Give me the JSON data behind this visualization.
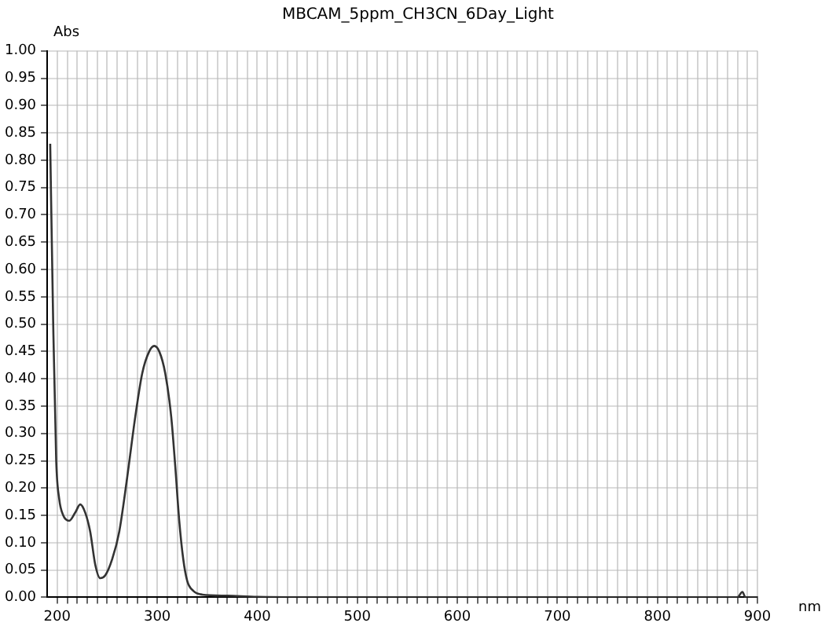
{
  "chart_data": {
    "type": "line",
    "title": "MBCAM_5ppm_CH3CN_6Day_Light",
    "xlabel": "nm",
    "ylabel": "Abs",
    "xlim": [
      190,
      900
    ],
    "ylim": [
      0,
      1
    ],
    "xticks": [
      200,
      {
        "value": 210,
        "label": null
      },
      {
        "value": 220,
        "label": null
      },
      {
        "value": 230,
        "label": null
      },
      {
        "value": 240,
        "label": null
      },
      {
        "value": 250,
        "label": null
      },
      {
        "value": 260,
        "label": null
      },
      {
        "value": 270,
        "label": null
      },
      {
        "value": 280,
        "label": null
      },
      {
        "value": 290,
        "label": null
      },
      300,
      {
        "value": 310,
        "label": null
      },
      {
        "value": 320,
        "label": null
      },
      {
        "value": 330,
        "label": null
      },
      {
        "value": 340,
        "label": null
      },
      {
        "value": 350,
        "label": null
      },
      {
        "value": 360,
        "label": null
      },
      {
        "value": 370,
        "label": null
      },
      {
        "value": 380,
        "label": null
      },
      {
        "value": 390,
        "label": null
      },
      400,
      {
        "value": 410,
        "label": null
      },
      {
        "value": 420,
        "label": null
      },
      {
        "value": 430,
        "label": null
      },
      {
        "value": 440,
        "label": null
      },
      {
        "value": 450,
        "label": null
      },
      {
        "value": 460,
        "label": null
      },
      {
        "value": 470,
        "label": null
      },
      {
        "value": 480,
        "label": null
      },
      {
        "value": 490,
        "label": null
      },
      500,
      {
        "value": 510,
        "label": null
      },
      {
        "value": 520,
        "label": null
      },
      {
        "value": 530,
        "label": null
      },
      {
        "value": 540,
        "label": null
      },
      {
        "value": 550,
        "label": null
      },
      {
        "value": 560,
        "label": null
      },
      {
        "value": 570,
        "label": null
      },
      {
        "value": 580,
        "label": null
      },
      {
        "value": 590,
        "label": null
      },
      600,
      {
        "value": 610,
        "label": null
      },
      {
        "value": 620,
        "label": null
      },
      {
        "value": 630,
        "label": null
      },
      {
        "value": 640,
        "label": null
      },
      {
        "value": 650,
        "label": null
      },
      {
        "value": 660,
        "label": null
      },
      {
        "value": 670,
        "label": null
      },
      {
        "value": 680,
        "label": null
      },
      {
        "value": 690,
        "label": null
      },
      700,
      {
        "value": 710,
        "label": null
      },
      {
        "value": 720,
        "label": null
      },
      {
        "value": 730,
        "label": null
      },
      {
        "value": 740,
        "label": null
      },
      {
        "value": 750,
        "label": null
      },
      {
        "value": 760,
        "label": null
      },
      {
        "value": 770,
        "label": null
      },
      {
        "value": 780,
        "label": null
      },
      {
        "value": 790,
        "label": null
      },
      800,
      {
        "value": 810,
        "label": null
      },
      {
        "value": 820,
        "label": null
      },
      {
        "value": 830,
        "label": null
      },
      {
        "value": 840,
        "label": null
      },
      {
        "value": 850,
        "label": null
      },
      {
        "value": 860,
        "label": null
      },
      {
        "value": 870,
        "label": null
      },
      {
        "value": 880,
        "label": null
      },
      {
        "value": 890,
        "label": null
      },
      900
    ],
    "yticks": [
      {
        "value": 0,
        "label": "0.00"
      },
      0.05,
      {
        "value": 0.1,
        "label": "0.10"
      },
      0.15,
      {
        "value": 0.2,
        "label": "0.20"
      },
      0.25,
      {
        "value": 0.3,
        "label": "0.30"
      },
      0.35,
      {
        "value": 0.4,
        "label": "0.40"
      },
      0.45,
      {
        "value": 0.5,
        "label": "0.50"
      },
      0.55,
      {
        "value": 0.6,
        "label": "0.60"
      },
      0.65,
      {
        "value": 0.7,
        "label": "0.70"
      },
      0.75,
      {
        "value": 0.8,
        "label": "0.80"
      },
      0.85,
      {
        "value": 0.9,
        "label": "0.90"
      },
      0.95,
      {
        "value": 1,
        "label": "1.00"
      }
    ],
    "grid": true,
    "marker": "none",
    "line_style": "solid",
    "series": [
      {
        "color": "#333333",
        "x": [
          193,
          196,
          199,
          202,
          206,
          212,
          218,
          223,
          228,
          233,
          238,
          243,
          248,
          255,
          262,
          270,
          278,
          285,
          292,
          297,
          302,
          308,
          314,
          318,
          322,
          326,
          330,
          336,
          345,
          370,
          400,
          500,
          700,
          880,
          885,
          888,
          900
        ],
        "values": [
          0.83,
          0.5,
          0.25,
          0.18,
          0.15,
          0.14,
          0.155,
          0.17,
          0.155,
          0.12,
          0.06,
          0.035,
          0.04,
          0.07,
          0.12,
          0.22,
          0.33,
          0.41,
          0.45,
          0.46,
          0.45,
          0.41,
          0.33,
          0.24,
          0.14,
          0.07,
          0.03,
          0.012,
          0.005,
          0.003,
          0.001,
          0,
          0,
          0,
          0.01,
          0,
          0
        ]
      }
    ]
  }
}
